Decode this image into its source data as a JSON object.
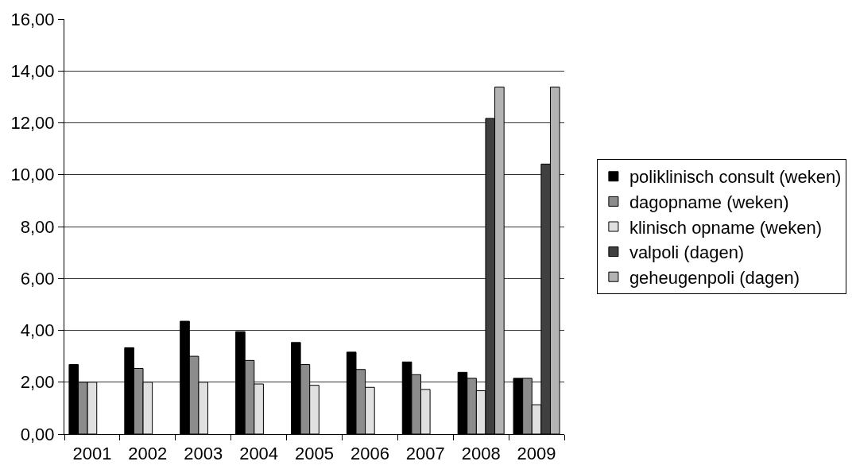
{
  "chart_data": {
    "type": "bar",
    "categories": [
      "2001",
      "2002",
      "2003",
      "2004",
      "2005",
      "2006",
      "2007",
      "2008",
      "2009"
    ],
    "series": [
      {
        "name": "poliklinisch consult (weken)",
        "color": "#000000",
        "values": [
          2.68,
          3.33,
          4.35,
          3.95,
          3.53,
          3.16,
          2.78,
          2.38,
          2.15
        ]
      },
      {
        "name": "dagopname (weken)",
        "color": "#8c8c8c",
        "values": [
          2.0,
          2.53,
          3.0,
          2.84,
          2.68,
          2.49,
          2.29,
          2.15,
          2.15
        ]
      },
      {
        "name": "klinisch opname (weken)",
        "color": "#e0e0e0",
        "values": [
          2.0,
          2.0,
          2.0,
          1.93,
          1.88,
          1.8,
          1.72,
          1.67,
          1.13
        ]
      },
      {
        "name": "valpoli (dagen)",
        "color": "#404040",
        "values": [
          null,
          null,
          null,
          null,
          null,
          null,
          null,
          12.17,
          10.41
        ]
      },
      {
        "name": "geheugenpoli (dagen)",
        "color": "#b3b3b3",
        "values": [
          null,
          null,
          null,
          null,
          null,
          null,
          null,
          13.38,
          13.38
        ]
      }
    ],
    "ylim": [
      0,
      16
    ],
    "yticks": [
      {
        "value": 0,
        "label": "0,00"
      },
      {
        "value": 2,
        "label": "2,00"
      },
      {
        "value": 4,
        "label": "4,00"
      },
      {
        "value": 6,
        "label": "6,00"
      },
      {
        "value": 8,
        "label": "8,00"
      },
      {
        "value": 10,
        "label": "10,00"
      },
      {
        "value": 12,
        "label": "12,00"
      },
      {
        "value": 14,
        "label": "14,00"
      },
      {
        "value": 16,
        "label": "16,00"
      }
    ],
    "grid": "y",
    "legend": "right"
  }
}
